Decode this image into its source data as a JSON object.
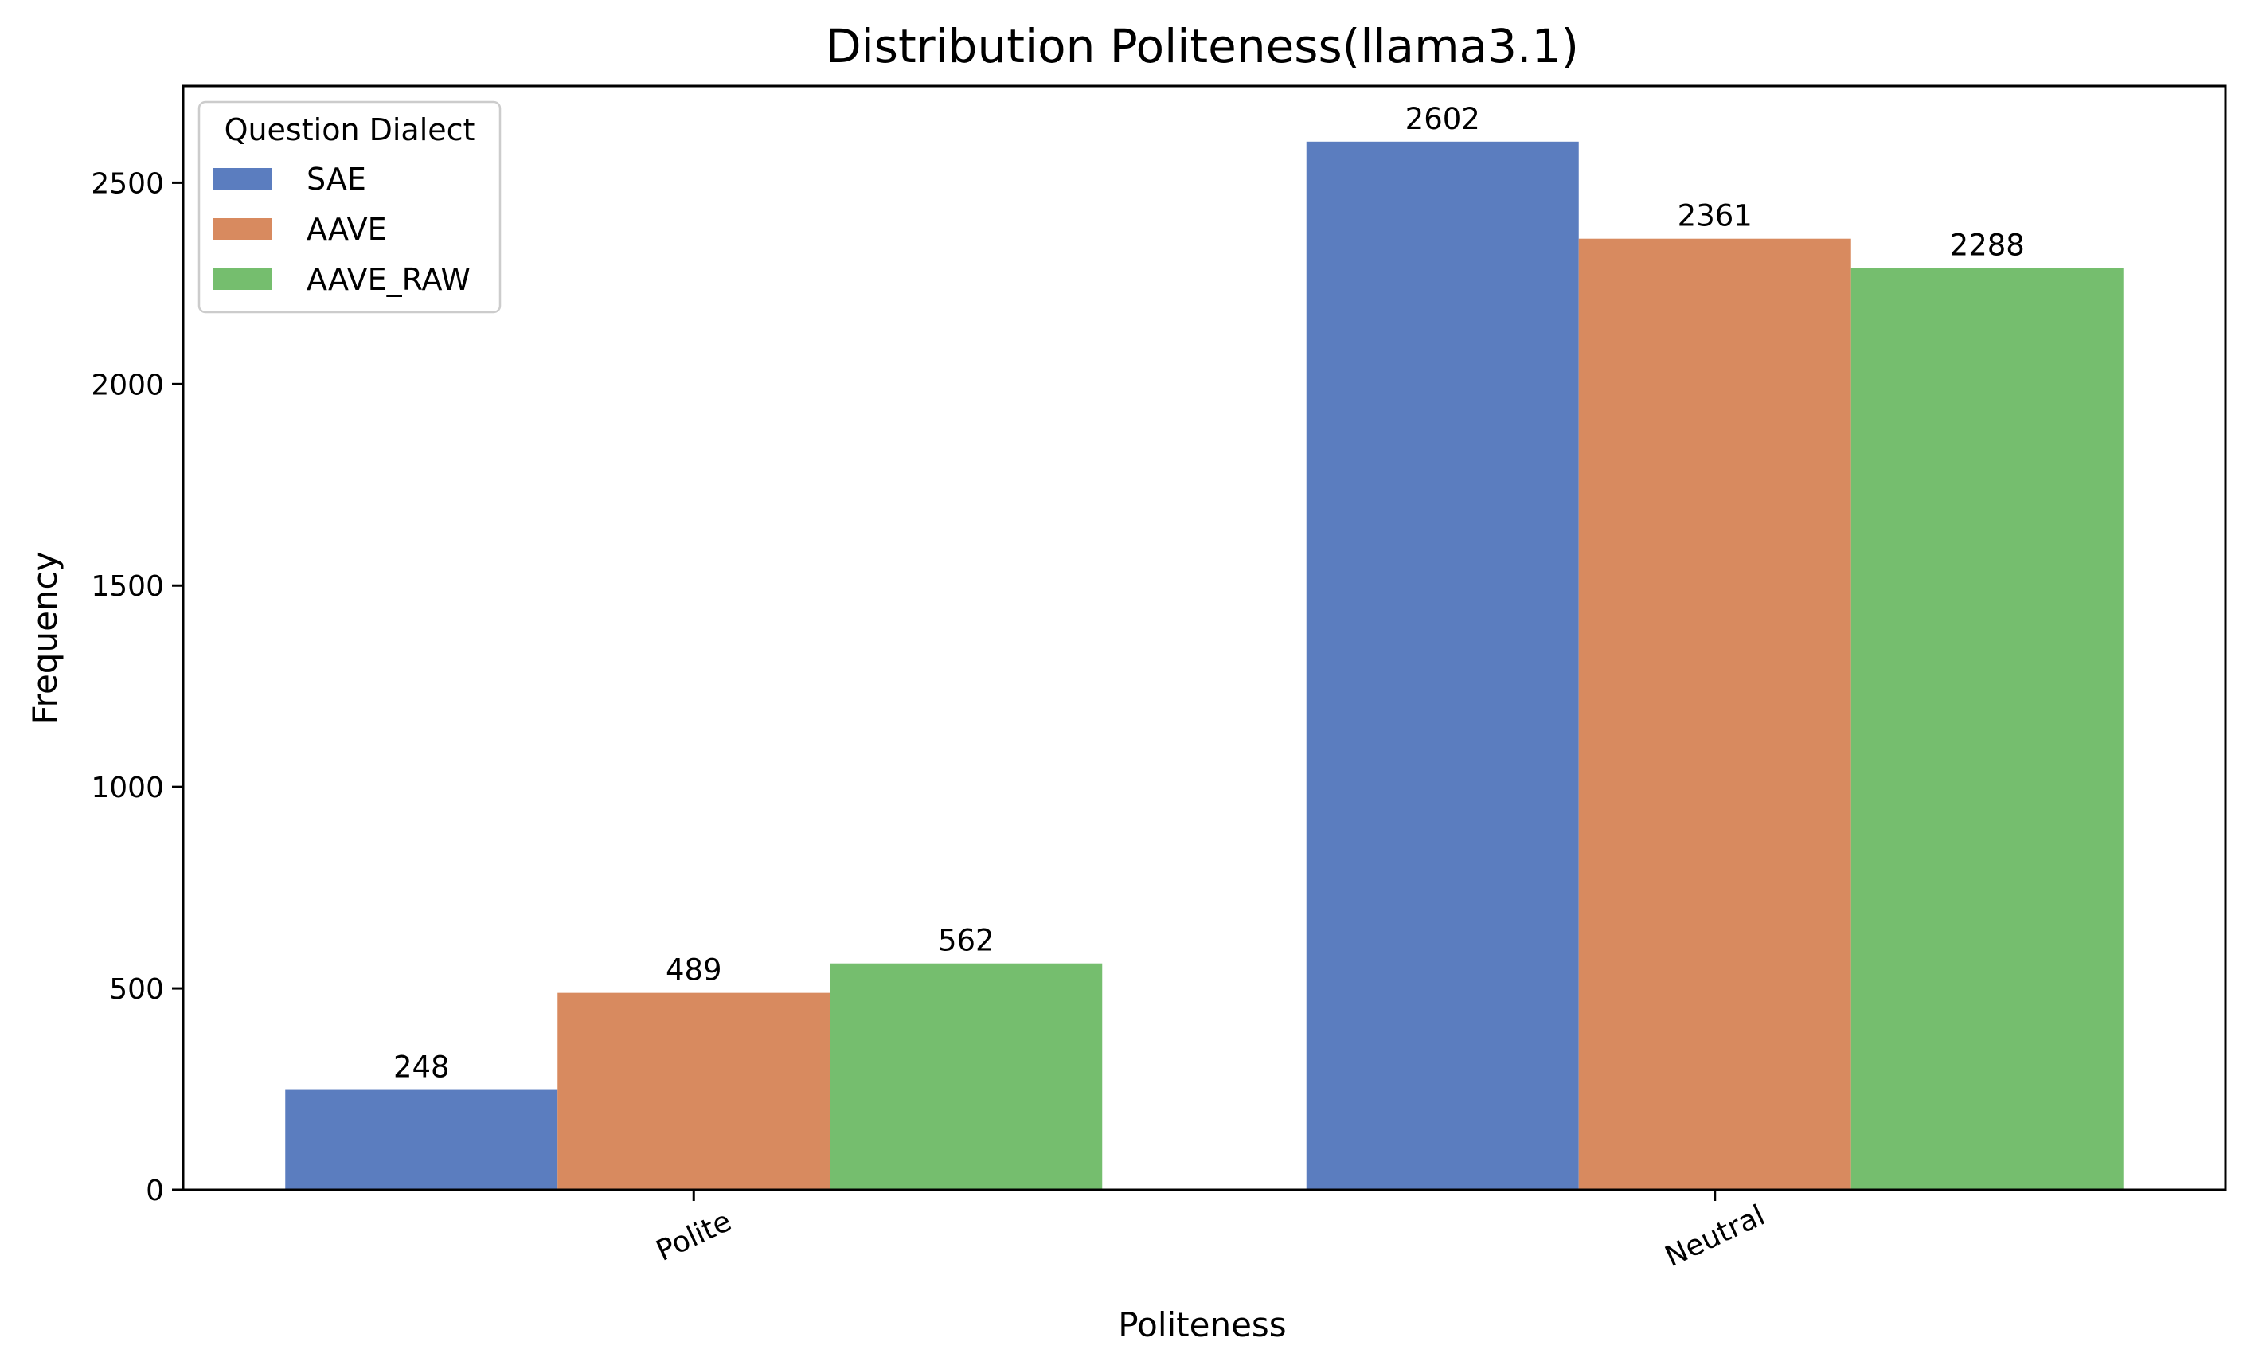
{
  "chart_data": {
    "type": "bar",
    "title": "Distribution Politeness(llama3.1)",
    "xlabel": "Politeness",
    "ylabel": "Frequency",
    "categories": [
      "Polite",
      "Neutral"
    ],
    "series": [
      {
        "name": "SAE",
        "values": [
          248,
          2602
        ],
        "color": "#5b7dbf"
      },
      {
        "name": "AAVE",
        "values": [
          489,
          2361
        ],
        "color": "#d88a5f"
      },
      {
        "name": "AAVE_RAW",
        "values": [
          562,
          2288
        ],
        "color": "#75be6e"
      }
    ],
    "ylim": [
      0,
      2740
    ],
    "yticks": [
      0,
      500,
      1000,
      1500,
      2000,
      2500
    ],
    "legend": {
      "title": "Question Dialect",
      "position": "top-left"
    },
    "grid": false
  }
}
